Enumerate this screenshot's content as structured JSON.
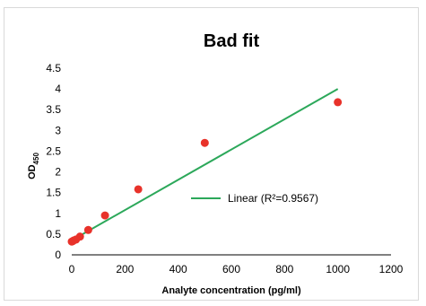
{
  "chart_data": {
    "type": "scatter",
    "title": "Bad fit",
    "xlabel": "Analyte concentration (pg/ml)",
    "ylabel_main": "OD",
    "ylabel_sub": "450",
    "xlim": [
      0,
      1200
    ],
    "ylim": [
      0,
      4.5
    ],
    "x_ticks": [
      "0",
      "200",
      "400",
      "600",
      "800",
      "1000",
      "1200"
    ],
    "y_ticks": [
      "0",
      "0.5",
      "1",
      "1.5",
      "2",
      "2.5",
      "3",
      "3.5",
      "4",
      "4.5"
    ],
    "grid": false,
    "points": {
      "color": "#e8322a",
      "x": [
        0,
        4,
        8,
        16,
        31,
        62,
        125,
        250,
        500,
        1000
      ],
      "y": [
        0.32,
        0.33,
        0.35,
        0.37,
        0.44,
        0.6,
        0.95,
        1.58,
        2.7,
        3.68
      ]
    },
    "trendline": {
      "color": "#2ca85a",
      "x": [
        0,
        1000
      ],
      "y": [
        0.35,
        4.0
      ]
    },
    "legend": {
      "text": "Linear  (R²=0.9567)",
      "placement": "right"
    }
  }
}
